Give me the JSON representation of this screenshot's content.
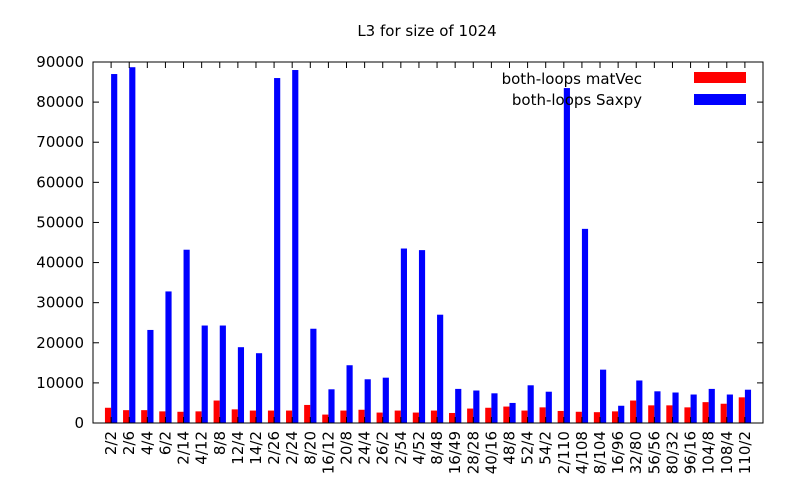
{
  "chart_data": {
    "type": "bar",
    "title": "L3 for size of 1024",
    "xlabel": "",
    "ylabel": "",
    "ylim": [
      0,
      90000
    ],
    "yticks": [
      "0",
      "10000",
      "20000",
      "30000",
      "40000",
      "50000",
      "60000",
      "70000",
      "80000",
      "90000"
    ],
    "legend_position": "top-right",
    "grid": false,
    "categories": [
      "2/2",
      "2/6",
      "4/4",
      "6/2",
      "2/14",
      "4/12",
      "8/8",
      "12/4",
      "14/2",
      "2/26",
      "2/24",
      "8/20",
      "16/12",
      "20/8",
      "24/4",
      "26/2",
      "2/54",
      "4/52",
      "8/48",
      "16/49",
      "28/28",
      "40/16",
      "48/8",
      "52/4",
      "54/2",
      "2/110",
      "4/108",
      "8/104",
      "16/96",
      "32/80",
      "56/56",
      "80/32",
      "96/16",
      "104/8",
      "108/4",
      "110/2"
    ],
    "series": [
      {
        "name": "both-loops matVec",
        "color": "#ff0000",
        "values": [
          3800,
          3200,
          3200,
          2900,
          2800,
          2900,
          5600,
          3400,
          3100,
          3100,
          3100,
          4500,
          2100,
          3100,
          3300,
          2600,
          3100,
          2600,
          3100,
          2500,
          3600,
          3800,
          4100,
          3100,
          3900,
          3000,
          2800,
          2700,
          2900,
          5600,
          4400,
          4400,
          3900,
          5200,
          4800,
          6400
        ]
      },
      {
        "name": "both-loops Saxpy",
        "color": "#0000ff",
        "values": [
          87000,
          88700,
          23200,
          32800,
          43200,
          24300,
          24300,
          18900,
          17400,
          86000,
          88000,
          23500,
          8400,
          14400,
          10900,
          11300,
          43500,
          43100,
          27000,
          8500,
          8100,
          7400,
          5000,
          9400,
          7800,
          83500,
          48400,
          13300,
          4300,
          10600,
          7900,
          7600,
          7100,
          8500,
          7100,
          8300
        ]
      }
    ]
  }
}
